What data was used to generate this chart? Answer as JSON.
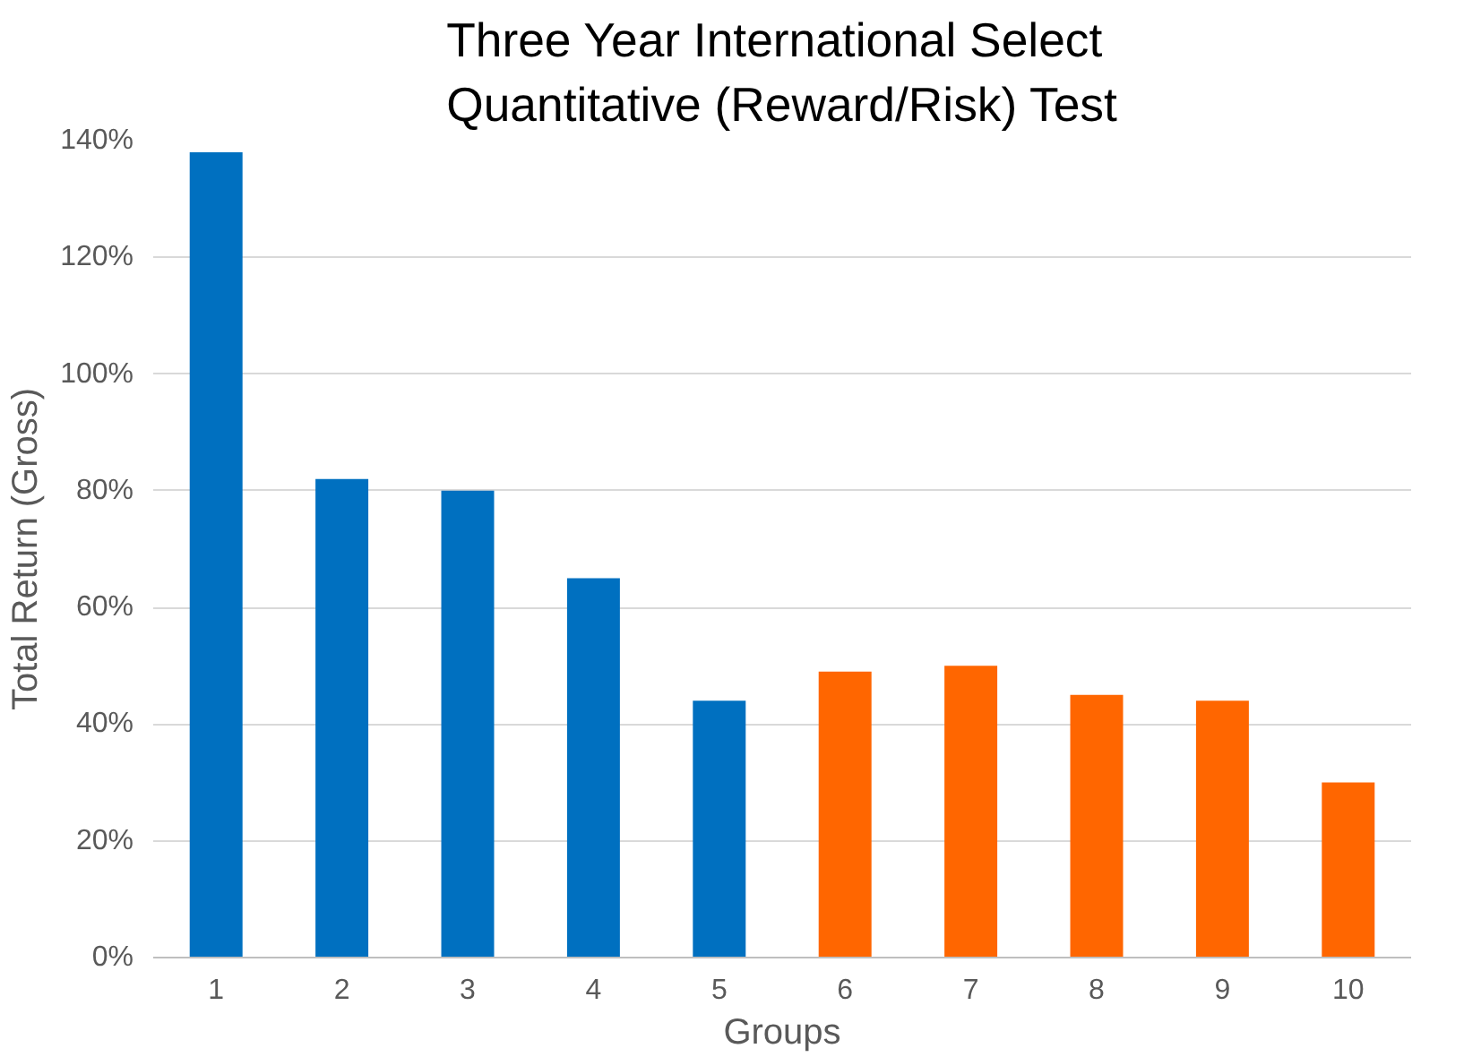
{
  "chart_data": {
    "type": "bar",
    "title": "Three Year International Select\nQuantitative (Reward/Risk) Test",
    "xlabel": "Groups",
    "ylabel": "Total Return (Gross)",
    "categories": [
      "1",
      "2",
      "3",
      "4",
      "5",
      "6",
      "7",
      "8",
      "9",
      "10"
    ],
    "values": [
      138,
      82,
      80,
      65,
      44,
      49,
      50,
      45,
      44,
      30
    ],
    "colors": [
      "#0070c0",
      "#0070c0",
      "#0070c0",
      "#0070c0",
      "#0070c0",
      "#ff6600",
      "#ff6600",
      "#ff6600",
      "#ff6600",
      "#ff6600"
    ],
    "ylim": [
      0,
      140
    ],
    "yticks": [
      {
        "value": 0,
        "label": "0%"
      },
      {
        "value": 20,
        "label": "20%"
      },
      {
        "value": 40,
        "label": "40%"
      },
      {
        "value": 60,
        "label": "60%"
      },
      {
        "value": 80,
        "label": "80%"
      },
      {
        "value": 100,
        "label": "100%"
      },
      {
        "value": 120,
        "label": "120%"
      },
      {
        "value": 140,
        "label": "140%"
      }
    ],
    "grid": "y"
  }
}
